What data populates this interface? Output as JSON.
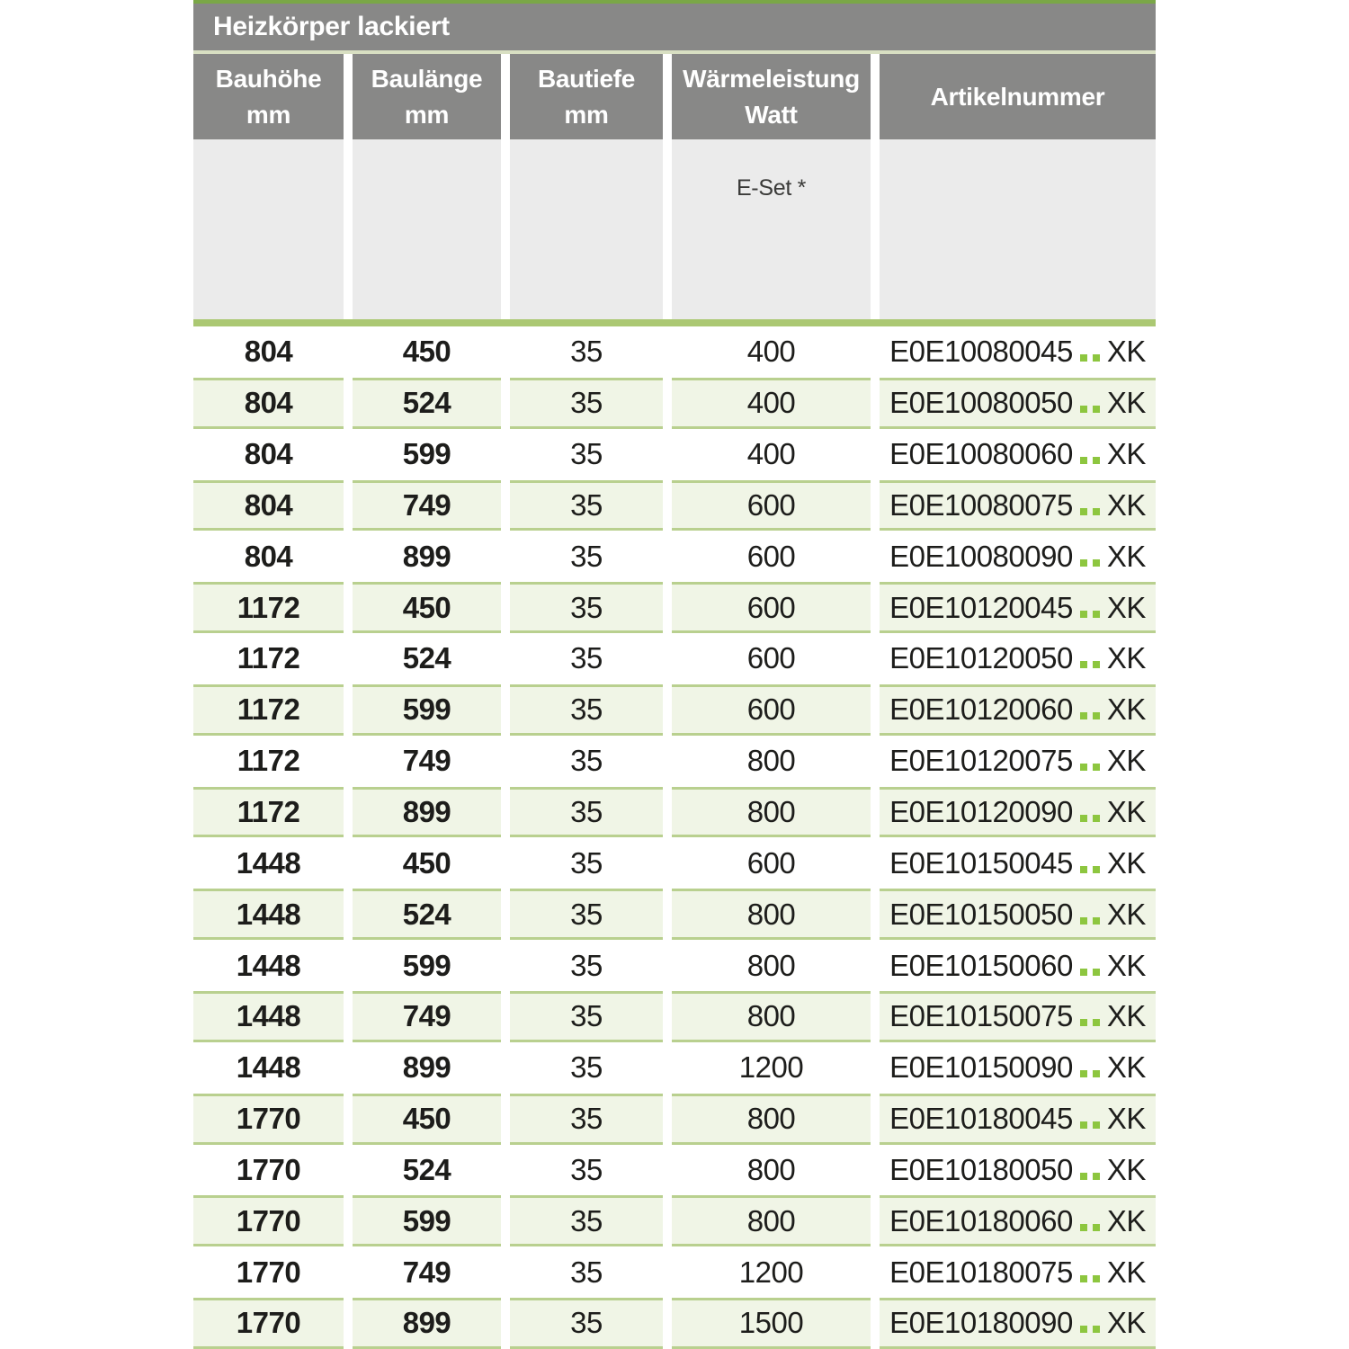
{
  "table": {
    "title": "Heizkörper lackiert",
    "columns": [
      {
        "id": "bauhoehe",
        "line1": "Bauhöhe",
        "line2": "mm"
      },
      {
        "id": "baulaenge",
        "line1": "Baulänge",
        "line2": "mm"
      },
      {
        "id": "bautiefe",
        "line1": "Bautiefe",
        "line2": "mm"
      },
      {
        "id": "waermeleistung",
        "line1": "Wärmeleistung",
        "line2": "Watt"
      },
      {
        "id": "artikelnummer",
        "line1": "Artikelnummer",
        "line2": ""
      }
    ],
    "subheader": {
      "eset_label": "E-Set *"
    },
    "artikel_suffix": "XK",
    "artikel_dot_count": 2,
    "rows": [
      {
        "hoehe": "804",
        "laenge": "450",
        "tiefe": "35",
        "watt": "400",
        "artikel": "E0E10080045"
      },
      {
        "hoehe": "804",
        "laenge": "524",
        "tiefe": "35",
        "watt": "400",
        "artikel": "E0E10080050"
      },
      {
        "hoehe": "804",
        "laenge": "599",
        "tiefe": "35",
        "watt": "400",
        "artikel": "E0E10080060"
      },
      {
        "hoehe": "804",
        "laenge": "749",
        "tiefe": "35",
        "watt": "600",
        "artikel": "E0E10080075"
      },
      {
        "hoehe": "804",
        "laenge": "899",
        "tiefe": "35",
        "watt": "600",
        "artikel": "E0E10080090"
      },
      {
        "hoehe": "1172",
        "laenge": "450",
        "tiefe": "35",
        "watt": "600",
        "artikel": "E0E10120045"
      },
      {
        "hoehe": "1172",
        "laenge": "524",
        "tiefe": "35",
        "watt": "600",
        "artikel": "E0E10120050"
      },
      {
        "hoehe": "1172",
        "laenge": "599",
        "tiefe": "35",
        "watt": "600",
        "artikel": "E0E10120060"
      },
      {
        "hoehe": "1172",
        "laenge": "749",
        "tiefe": "35",
        "watt": "800",
        "artikel": "E0E10120075"
      },
      {
        "hoehe": "1172",
        "laenge": "899",
        "tiefe": "35",
        "watt": "800",
        "artikel": "E0E10120090"
      },
      {
        "hoehe": "1448",
        "laenge": "450",
        "tiefe": "35",
        "watt": "600",
        "artikel": "E0E10150045"
      },
      {
        "hoehe": "1448",
        "laenge": "524",
        "tiefe": "35",
        "watt": "800",
        "artikel": "E0E10150050"
      },
      {
        "hoehe": "1448",
        "laenge": "599",
        "tiefe": "35",
        "watt": "800",
        "artikel": "E0E10150060"
      },
      {
        "hoehe": "1448",
        "laenge": "749",
        "tiefe": "35",
        "watt": "800",
        "artikel": "E0E10150075"
      },
      {
        "hoehe": "1448",
        "laenge": "899",
        "tiefe": "35",
        "watt": "1200",
        "artikel": "E0E10150090"
      },
      {
        "hoehe": "1770",
        "laenge": "450",
        "tiefe": "35",
        "watt": "800",
        "artikel": "E0E10180045"
      },
      {
        "hoehe": "1770",
        "laenge": "524",
        "tiefe": "35",
        "watt": "800",
        "artikel": "E0E10180050"
      },
      {
        "hoehe": "1770",
        "laenge": "599",
        "tiefe": "35",
        "watt": "800",
        "artikel": "E0E10180060"
      },
      {
        "hoehe": "1770",
        "laenge": "749",
        "tiefe": "35",
        "watt": "1200",
        "artikel": "E0E10180075"
      },
      {
        "hoehe": "1770",
        "laenge": "899",
        "tiefe": "35",
        "watt": "1500",
        "artikel": "E0E10180090"
      }
    ]
  },
  "colors": {
    "accent_green_top": "#7aa747",
    "pale_green_separator": "#d8dfc2",
    "header_gray": "#888887",
    "subheader_gray": "#ebebeb",
    "thick_green_bar": "#abc873",
    "row_green_bg": "#f0f5e6",
    "row_rule_green": "#b9d08f",
    "dot_green": "#8dc63f",
    "text_dark": "#1d1d1b",
    "header_text": "#ffffff"
  }
}
